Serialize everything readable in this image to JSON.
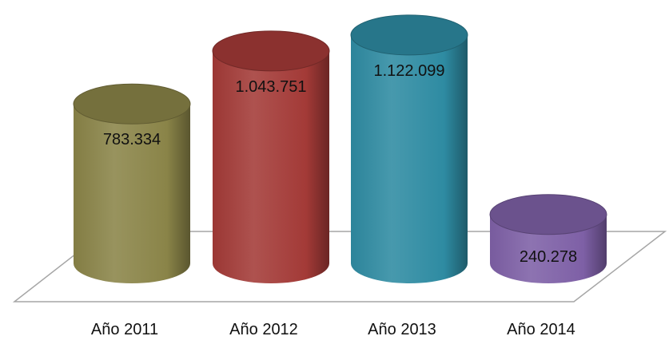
{
  "chart_data": {
    "type": "bar",
    "style": "3d-cylinder",
    "categories": [
      "Año 2011",
      "Año 2012",
      "Año 2013",
      "Año 2014"
    ],
    "values": [
      783334,
      1043751,
      1122099,
      240278
    ],
    "data_labels": [
      "783.334",
      "1.043.751",
      "1.122.099",
      "240.278"
    ],
    "colors": [
      "#8a8448",
      "#a33a37",
      "#2e8ba2",
      "#7e60a6"
    ],
    "ylim": [
      0,
      1200000
    ],
    "grid": false,
    "legend": "none",
    "floor_color": "#a6a6a6"
  }
}
